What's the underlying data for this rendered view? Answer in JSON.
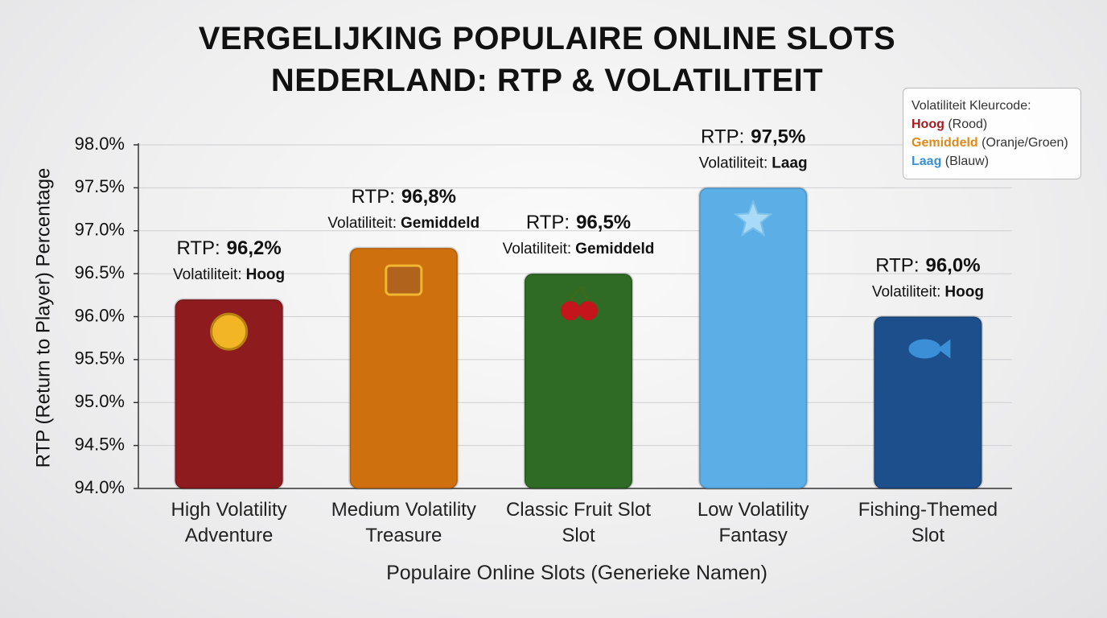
{
  "chart_data": {
    "type": "bar",
    "title": "VERGELIJKING POPULAIRE ONLINE SLOTS NEDERLAND: RTP & VOLATILITEIT",
    "y_label": "RTP (Return to Player) Percentage",
    "x_label": "Populaire Online Slots (Generieke Namen)",
    "categories": [
      "High Volatility Adventure",
      "Medium Volatility Treasure",
      "Classic Fruit Slot Slot",
      "Low Volatility Fantasy",
      "Fishing-Themed Slot"
    ],
    "values": [
      96.2,
      96.8,
      96.5,
      97.5,
      96.0
    ],
    "value_labels": [
      "96,2%",
      "96,8%",
      "96,5%",
      "97,5%",
      "96,0%"
    ],
    "value_label_prefix": "RTP:",
    "volatility_prefix": "Volatiliteit:",
    "volatility": [
      "Hoog",
      "Gemiddeld",
      "Gemiddeld",
      "Laag",
      "Hoog"
    ],
    "colors": [
      "#8e1b1e",
      "#cf700f",
      "#2f6b25",
      "#5cafe6",
      "#1d4f8c"
    ],
    "ylim": [
      94,
      98
    ],
    "yticks": [
      {
        "value": 94,
        "label": "94.0%"
      },
      {
        "value": 94.5,
        "label": "94.5%"
      },
      {
        "value": 95,
        "label": "95.0%"
      },
      {
        "value": 95.5,
        "label": "95.5%"
      },
      {
        "value": 96,
        "label": "96.0%"
      },
      {
        "value": 96.5,
        "label": "96.5%"
      },
      {
        "value": 97,
        "label": "97.0%"
      },
      {
        "value": 97.5,
        "label": "97.5%"
      },
      {
        "value": 98,
        "label": "98.0%"
      }
    ],
    "grid": true,
    "legend_position": "upper right",
    "legend": {
      "title": "Volatiliteit Kleurcode:",
      "items": [
        {
          "name": "Hoog",
          "note": "(Rood)",
          "color": "#a8191c"
        },
        {
          "name": "Gemiddeld",
          "note": "(Oranje/Groen)",
          "color": "#e0891a"
        },
        {
          "name": "Laag",
          "note": "(Blauw)",
          "color": "#3a90d6"
        }
      ]
    }
  }
}
